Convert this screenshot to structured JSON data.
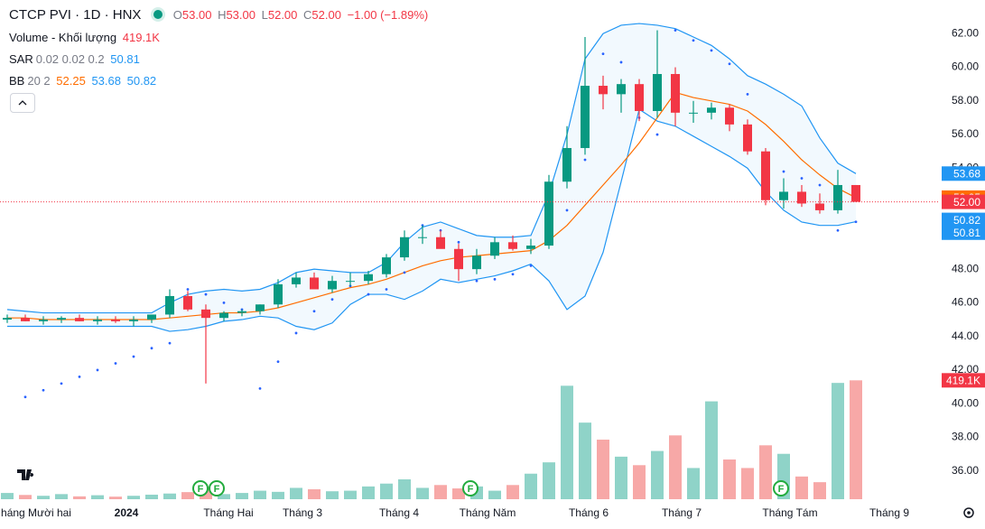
{
  "chart_data": {
    "type": "candlestick",
    "title": "CTCP PVI · 1D · HNX",
    "legend": {
      "open_label": "O",
      "open": "53.00",
      "high_label": "H",
      "high": "53.00",
      "low_label": "L",
      "low": "52.00",
      "close_label": "C",
      "close": "52.00",
      "change": "−1.00 (−1.89%)",
      "volume_name": "Volume - Khối lượng",
      "volume": "419.1K",
      "sar_name": "SAR",
      "sar_params": "0.02 0.02 0.2",
      "bb_name": "BB",
      "bb_params": "20 2"
    },
    "event_marker": "F",
    "up_color": "#089981",
    "down_color": "#f23645",
    "up_volume_color": "#8fd3c8",
    "down_volume_color": "#f7a8a7",
    "bb_color": "#2196f3",
    "bb_middle_color": "#ff6d00",
    "sar_color": "#2962ff",
    "open": [
      45.0,
      45.1,
      44.9,
      45.0,
      45.1,
      44.9,
      45.0,
      44.9,
      45.0,
      45.3,
      46.4,
      45.6,
      45.1,
      45.4,
      45.5,
      45.9,
      47.1,
      47.5,
      46.8,
      47.3,
      47.3,
      47.7,
      48.7,
      49.9,
      49.9,
      49.2,
      48.0,
      48.8,
      49.6,
      49.2,
      49.4,
      53.2,
      55.2,
      58.9,
      58.4,
      59.0,
      57.4,
      59.6,
      57.3,
      57.3,
      57.6,
      56.6,
      55.0,
      52.1,
      52.6,
      51.9,
      51.5,
      53.0
    ],
    "high": [
      45.3,
      45.3,
      45.2,
      45.2,
      45.3,
      45.2,
      45.2,
      45.2,
      45.3,
      46.8,
      46.7,
      45.9,
      45.5,
      45.6,
      45.9,
      47.4,
      47.8,
      47.8,
      47.6,
      47.8,
      47.9,
      48.9,
      50.3,
      50.6,
      50.3,
      49.5,
      49.2,
      49.9,
      50.0,
      49.8,
      53.6,
      56.5,
      61.8,
      59.5,
      59.3,
      59.3,
      62.2,
      60.0,
      58.0,
      57.9,
      57.8,
      56.9,
      55.2,
      53.4,
      53.0,
      52.5,
      53.9,
      53.0
    ],
    "low": [
      44.8,
      44.9,
      44.7,
      44.8,
      44.9,
      44.7,
      44.8,
      44.6,
      44.8,
      45.1,
      45.5,
      41.2,
      44.9,
      45.2,
      45.3,
      45.7,
      46.9,
      46.8,
      46.6,
      47.0,
      47.1,
      47.5,
      48.5,
      49.5,
      49.3,
      47.3,
      47.7,
      48.6,
      49.1,
      48.9,
      49.2,
      52.8,
      54.8,
      57.5,
      57.3,
      56.8,
      57.0,
      56.5,
      56.7,
      56.9,
      56.2,
      54.8,
      51.8,
      51.6,
      51.7,
      51.3,
      51.3,
      52.0
    ],
    "close": [
      45.1,
      44.9,
      45.0,
      45.1,
      44.9,
      45.0,
      44.9,
      45.0,
      45.3,
      46.4,
      45.6,
      45.1,
      45.4,
      45.5,
      45.9,
      47.1,
      47.5,
      46.8,
      47.3,
      47.3,
      47.7,
      48.7,
      49.9,
      49.9,
      49.2,
      48.0,
      48.8,
      49.6,
      49.2,
      49.4,
      53.2,
      55.2,
      58.9,
      58.4,
      59.0,
      57.4,
      59.6,
      57.3,
      57.3,
      57.6,
      56.6,
      55.0,
      52.1,
      52.6,
      51.9,
      51.5,
      53.0,
      52
    ],
    "volume": [
      22000,
      15000,
      12000,
      18000,
      10000,
      14000,
      9000,
      12000,
      16000,
      20000,
      25000,
      45000,
      18000,
      22000,
      30000,
      26000,
      40000,
      35000,
      28000,
      30000,
      45000,
      55000,
      70000,
      40000,
      50000,
      38000,
      45000,
      30000,
      50000,
      90000,
      130000,
      400000,
      270000,
      210000,
      150000,
      120000,
      170000,
      225000,
      110000,
      345000,
      140000,
      110000,
      190000,
      160000,
      80000,
      60000,
      410000,
      419100
    ],
    "bb_upper": [
      45.6,
      45.5,
      45.4,
      45.4,
      45.4,
      45.4,
      45.4,
      45.4,
      45.4,
      46.0,
      46.5,
      46.7,
      46.8,
      46.7,
      46.8,
      47.2,
      47.8,
      48.0,
      47.9,
      47.8,
      47.8,
      48.4,
      49.6,
      50.5,
      50.8,
      50.4,
      50.0,
      49.9,
      49.9,
      50.0,
      52.5,
      56.0,
      60.5,
      62.0,
      62.5,
      62.6,
      62.5,
      62.3,
      61.8,
      61.3,
      60.5,
      59.5,
      59.0,
      58.4,
      57.7,
      55.8,
      54.3,
      53.68
    ],
    "bb_middle": [
      45.1,
      45.1,
      45.0,
      45.0,
      45.0,
      45.0,
      45.0,
      45.0,
      45.0,
      45.1,
      45.2,
      45.3,
      45.4,
      45.4,
      45.5,
      45.7,
      46.0,
      46.3,
      46.6,
      46.9,
      47.1,
      47.4,
      47.8,
      48.2,
      48.5,
      48.7,
      48.8,
      48.9,
      49.0,
      49.1,
      49.7,
      50.6,
      51.8,
      53.0,
      54.2,
      55.5,
      57.0,
      58.5,
      58.2,
      58.0,
      57.8,
      57.4,
      56.6,
      55.6,
      54.5,
      53.6,
      52.8,
      52.25
    ],
    "bb_lower": [
      44.6,
      44.6,
      44.6,
      44.6,
      44.6,
      44.6,
      44.6,
      44.6,
      44.6,
      44.3,
      44.4,
      44.6,
      44.9,
      45.0,
      45.2,
      45.1,
      44.6,
      44.4,
      44.8,
      45.9,
      46.5,
      46.5,
      46.2,
      46.7,
      47.4,
      47.2,
      47.4,
      47.6,
      47.9,
      48.3,
      47.3,
      45.6,
      46.4,
      49.0,
      53.2,
      57.5,
      56.8,
      56.5,
      55.9,
      55.3,
      54.7,
      54.0,
      52.6,
      51.5,
      50.8,
      50.6,
      50.6,
      50.82
    ],
    "sar": [
      null,
      40.4,
      40.8,
      41.2,
      41.6,
      42.0,
      42.4,
      42.8,
      43.3,
      43.6,
      46.8,
      46.5,
      46.0,
      45.6,
      40.9,
      42.5,
      44.2,
      45.5,
      46.2,
      47.0,
      46.5,
      46.8,
      47.8,
      50.6,
      50.3,
      49.6,
      47.3,
      47.4,
      47.7,
      48.2,
      50.0,
      51.5,
      54.5,
      60.8,
      60.3,
      57.0,
      56.0,
      62.2,
      61.6,
      61.0,
      60.2,
      58.4,
      54.3,
      53.8,
      53.4,
      53.0,
      50.3,
      50.81
    ],
    "xlim": [
      -0.4,
      51.6
    ],
    "xticks": [
      {
        "value": 1.6,
        "label": "háng Mười hai"
      },
      {
        "value": 6.6,
        "label": "2024"
      },
      {
        "value": 12.25,
        "label": "Tháng Hai"
      },
      {
        "value": 16.35,
        "label": "Tháng 3"
      },
      {
        "value": 21.7,
        "label": "Tháng 4"
      },
      {
        "value": 26.6,
        "label": "Tháng Năm"
      },
      {
        "value": 32.2,
        "label": "Tháng 6"
      },
      {
        "value": 37.35,
        "label": "Tháng 7"
      },
      {
        "value": 43.35,
        "label": "Tháng Tám"
      },
      {
        "value": 48.85,
        "label": "Tháng 9"
      }
    ],
    "ylim": [
      34,
      64
    ],
    "yticks": [
      {
        "value": 36,
        "label": "36.00"
      },
      {
        "value": 38,
        "label": "38.00"
      },
      {
        "value": 40,
        "label": "40.00"
      },
      {
        "value": 42,
        "label": "42.00"
      },
      {
        "value": 44,
        "label": "44.00"
      },
      {
        "value": 46,
        "label": "46.00"
      },
      {
        "value": 48,
        "label": "48.00"
      },
      {
        "value": 50,
        "label": "50.00"
      },
      {
        "value": 52,
        "label": "52.00"
      },
      {
        "value": 54,
        "label": "54.00"
      },
      {
        "value": 56,
        "label": "56.00"
      },
      {
        "value": 58,
        "label": "58.00"
      },
      {
        "value": 60,
        "label": "60.00"
      },
      {
        "value": 62,
        "label": "62.00"
      }
    ],
    "y2lim": [
      0,
      1760000
    ]
  }
}
